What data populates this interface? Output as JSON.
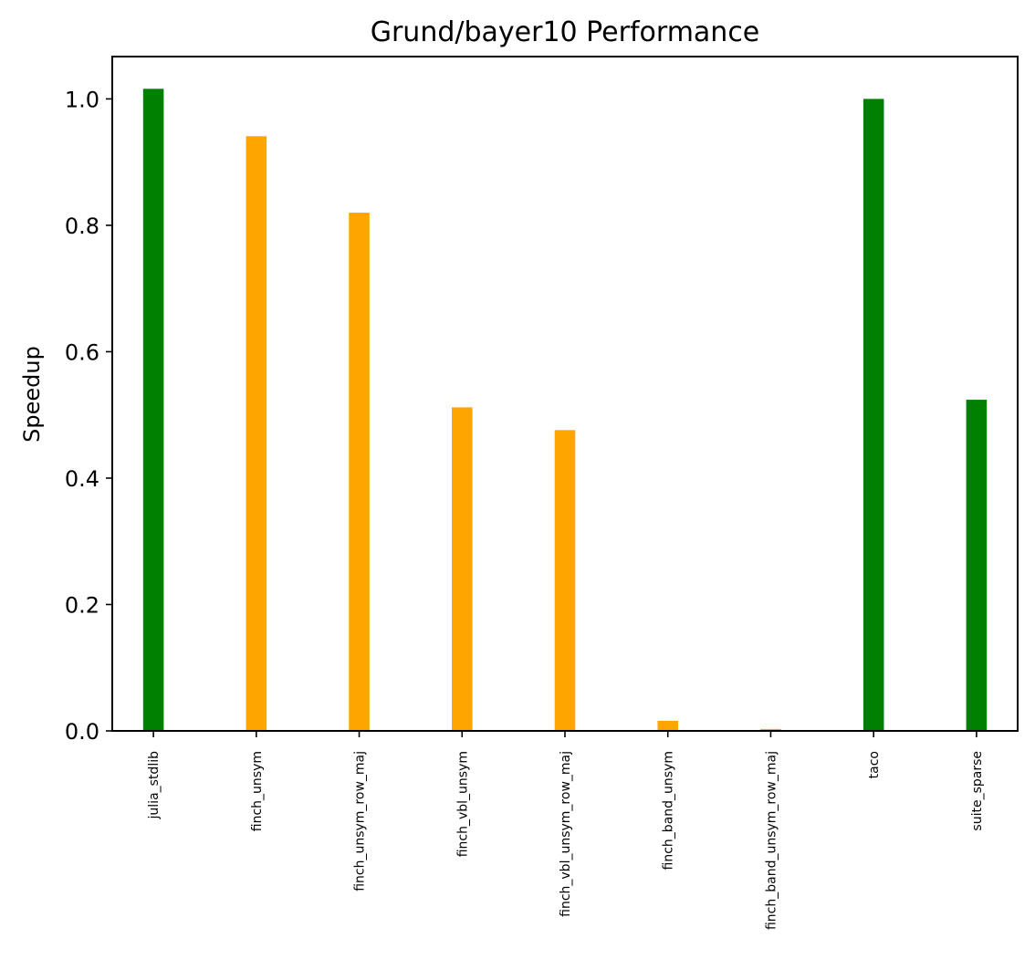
{
  "chart_data": {
    "type": "bar",
    "title": "Grund/bayer10 Performance",
    "xlabel": "",
    "ylabel": "Speedup",
    "categories": [
      "julia_stdlib",
      "finch_unsym",
      "finch_unsym_row_maj",
      "finch_vbl_unsym",
      "finch_vbl_unsym_row_maj",
      "finch_band_unsym",
      "finch_band_unsym_row_maj",
      "taco",
      "suite_sparse"
    ],
    "values": [
      1.016,
      0.941,
      0.82,
      0.512,
      0.476,
      0.016,
      0.003,
      1.0,
      0.524
    ],
    "colors": [
      "#008000",
      "#ffa500",
      "#ffa500",
      "#ffa500",
      "#ffa500",
      "#ffa500",
      "#ffa500",
      "#008000",
      "#008000"
    ],
    "ylim": [
      0,
      1.067
    ],
    "yticks": [
      "0.0",
      "0.2",
      "0.4",
      "0.6",
      "0.8",
      "1.0"
    ],
    "grid": false,
    "legend": "none"
  }
}
